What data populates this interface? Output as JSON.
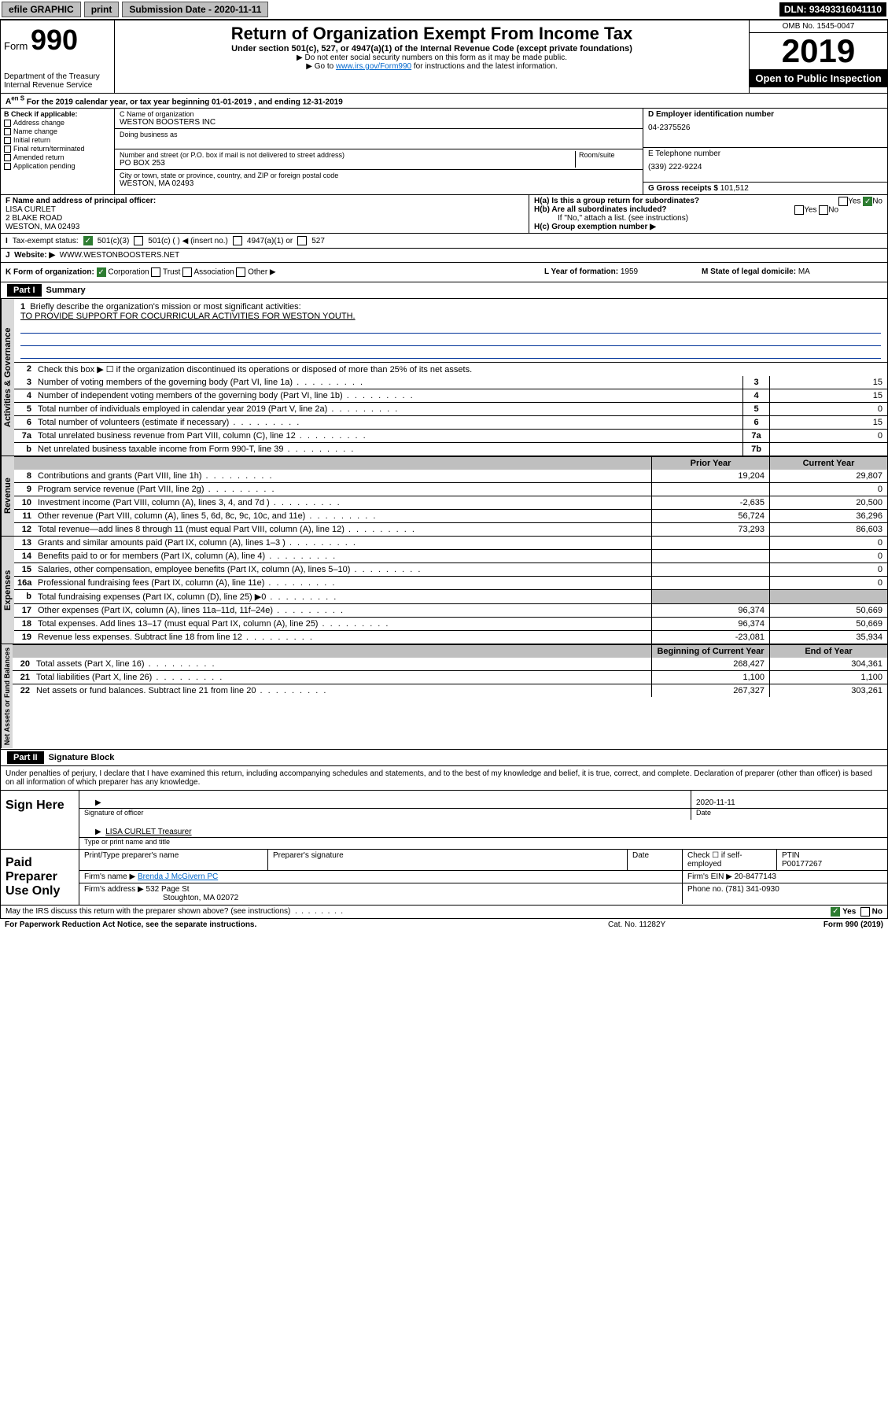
{
  "top": {
    "efile": "efile GRAPHIC",
    "print": "print",
    "subDate": "Submission Date - 2020-11-11",
    "dln": "DLN: 93493316041110"
  },
  "header": {
    "form": "Form",
    "num": "990",
    "dept": "Department of the Treasury\nInternal Revenue Service",
    "title": "Return of Organization Exempt From Income Tax",
    "sub": "Under section 501(c), 527, or 4947(a)(1) of the Internal Revenue Code (except private foundations)",
    "note1": "▶ Do not enter social security numbers on this form as it may be made public.",
    "note2_pre": "▶ Go to ",
    "note2_link": "www.irs.gov/Form990",
    "note2_post": " for instructions and the latest information.",
    "omb": "OMB No. 1545-0047",
    "year": "2019",
    "open": "Open to Public Inspection"
  },
  "A": "For the 2019 calendar year, or tax year beginning 01-01-2019   , and ending 12-31-2019",
  "B": {
    "label": "B Check if applicable:",
    "items": [
      "Address change",
      "Name change",
      "Initial return",
      "Final return/terminated",
      "Amended return",
      "Application pending"
    ]
  },
  "C": {
    "nameLbl": "C Name of organization",
    "name": "WESTON BOOSTERS INC",
    "dbaLbl": "Doing business as",
    "addrLbl": "Number and street (or P.O. box if mail is not delivered to street address)",
    "roomLbl": "Room/suite",
    "addr": "PO BOX 253",
    "cityLbl": "City or town, state or province, country, and ZIP or foreign postal code",
    "city": "WESTON, MA  02493"
  },
  "D": {
    "lbl": "D Employer identification number",
    "val": "04-2375526"
  },
  "E": {
    "lbl": "E Telephone number",
    "val": "(339) 222-9224"
  },
  "G": {
    "lbl": "G Gross receipts $",
    "val": "101,512"
  },
  "F": {
    "lbl": "F  Name and address of principal officer:",
    "name": "LISA CURLET",
    "addr1": "2 BLAKE ROAD",
    "addr2": "WESTON, MA  02493"
  },
  "H": {
    "a": "H(a)  Is this a group return for subordinates?",
    "b": "H(b)  Are all subordinates included?",
    "bnote": "If \"No,\" attach a list. (see instructions)",
    "c": "H(c)  Group exemption number ▶",
    "yes": "Yes",
    "no": "No"
  },
  "I": {
    "lbl": "Tax-exempt status:",
    "opts": [
      "501(c)(3)",
      "501(c) (  ) ◀ (insert no.)",
      "4947(a)(1) or",
      "527"
    ]
  },
  "J": {
    "lbl": "Website: ▶",
    "val": "WWW.WESTONBOOSTERS.NET"
  },
  "K": {
    "lbl": "K Form of organization:",
    "opts": [
      "Corporation",
      "Trust",
      "Association",
      "Other ▶"
    ]
  },
  "L": {
    "lbl": "L Year of formation:",
    "val": "1959"
  },
  "M": {
    "lbl": "M State of legal domicile:",
    "val": "MA"
  },
  "part1": {
    "hdr": "Part I",
    "title": "Summary",
    "l1": "Briefly describe the organization's mission or most significant activities:",
    "l1val": "TO PROVIDE SUPPORT FOR COCURRICULAR ACTIVITIES FOR WESTON YOUTH.",
    "l2": "Check this box ▶ ☐  if the organization discontinued its operations or disposed of more than 25% of its net assets.",
    "rows_ag": [
      {
        "n": "3",
        "t": "Number of voting members of the governing body (Part VI, line 1a)",
        "b": "3",
        "v": "15"
      },
      {
        "n": "4",
        "t": "Number of independent voting members of the governing body (Part VI, line 1b)",
        "b": "4",
        "v": "15"
      },
      {
        "n": "5",
        "t": "Total number of individuals employed in calendar year 2019 (Part V, line 2a)",
        "b": "5",
        "v": "0"
      },
      {
        "n": "6",
        "t": "Total number of volunteers (estimate if necessary)",
        "b": "6",
        "v": "15"
      },
      {
        "n": "7a",
        "t": "Total unrelated business revenue from Part VIII, column (C), line 12",
        "b": "7a",
        "v": "0"
      },
      {
        "n": "b",
        "t": "Net unrelated business taxable income from Form 990-T, line 39",
        "b": "7b",
        "v": ""
      }
    ],
    "prior": "Prior Year",
    "current": "Current Year",
    "rev": [
      {
        "n": "8",
        "t": "Contributions and grants (Part VIII, line 1h)",
        "p": "19,204",
        "c": "29,807"
      },
      {
        "n": "9",
        "t": "Program service revenue (Part VIII, line 2g)",
        "p": "",
        "c": "0"
      },
      {
        "n": "10",
        "t": "Investment income (Part VIII, column (A), lines 3, 4, and 7d )",
        "p": "-2,635",
        "c": "20,500"
      },
      {
        "n": "11",
        "t": "Other revenue (Part VIII, column (A), lines 5, 6d, 8c, 9c, 10c, and 11e)",
        "p": "56,724",
        "c": "36,296"
      },
      {
        "n": "12",
        "t": "Total revenue—add lines 8 through 11 (must equal Part VIII, column (A), line 12)",
        "p": "73,293",
        "c": "86,603"
      }
    ],
    "exp": [
      {
        "n": "13",
        "t": "Grants and similar amounts paid (Part IX, column (A), lines 1–3 )",
        "p": "",
        "c": "0"
      },
      {
        "n": "14",
        "t": "Benefits paid to or for members (Part IX, column (A), line 4)",
        "p": "",
        "c": "0"
      },
      {
        "n": "15",
        "t": "Salaries, other compensation, employee benefits (Part IX, column (A), lines 5–10)",
        "p": "",
        "c": "0"
      },
      {
        "n": "16a",
        "t": "Professional fundraising fees (Part IX, column (A), line 11e)",
        "p": "",
        "c": "0"
      },
      {
        "n": "b",
        "t": "Total fundraising expenses (Part IX, column (D), line 25) ▶0",
        "p": "SHADE",
        "c": "SHADE"
      },
      {
        "n": "17",
        "t": "Other expenses (Part IX, column (A), lines 11a–11d, 11f–24e)",
        "p": "96,374",
        "c": "50,669"
      },
      {
        "n": "18",
        "t": "Total expenses. Add lines 13–17 (must equal Part IX, column (A), line 25)",
        "p": "96,374",
        "c": "50,669"
      },
      {
        "n": "19",
        "t": "Revenue less expenses. Subtract line 18 from line 12",
        "p": "-23,081",
        "c": "35,934"
      }
    ],
    "begin": "Beginning of Current Year",
    "end": "End of Year",
    "nab": [
      {
        "n": "20",
        "t": "Total assets (Part X, line 16)",
        "p": "268,427",
        "c": "304,361"
      },
      {
        "n": "21",
        "t": "Total liabilities (Part X, line 26)",
        "p": "1,100",
        "c": "1,100"
      },
      {
        "n": "22",
        "t": "Net assets or fund balances. Subtract line 21 from line 20",
        "p": "267,327",
        "c": "303,261"
      }
    ],
    "tabs": {
      "ag": "Activities & Governance",
      "rev": "Revenue",
      "exp": "Expenses",
      "nab": "Net Assets or Fund Balances"
    }
  },
  "part2": {
    "hdr": "Part II",
    "title": "Signature Block",
    "decl": "Under penalties of perjury, I declare that I have examined this return, including accompanying schedules and statements, and to the best of my knowledge and belief, it is true, correct, and complete. Declaration of preparer (other than officer) is based on all information of which preparer has any knowledge.",
    "signHere": "Sign Here",
    "sigOff": "Signature of officer",
    "date": "Date",
    "dateVal": "2020-11-11",
    "name": "LISA CURLET  Treasurer",
    "nameLbl": "Type or print name and title",
    "paid": "Paid Preparer Use Only",
    "col1": "Print/Type preparer's name",
    "col2": "Preparer's signature",
    "col3": "Date",
    "col4a": "Check ☐ if self-employed",
    "col4b": "PTIN",
    "ptin": "P00177267",
    "firmName": "Firm's name   ▶",
    "firm": "Brenda J McGivern PC",
    "firmEin": "Firm's EIN ▶",
    "ein": "20-8477143",
    "firmAddr": "Firm's address ▶",
    "addr": "532 Page St",
    "addr2": "Stoughton, MA  02072",
    "phone": "Phone no.",
    "phoneVal": "(781) 341-0930",
    "discuss": "May the IRS discuss this return with the preparer shown above? (see instructions)",
    "yes": "Yes",
    "no": "No"
  },
  "footer": {
    "paperwork": "For Paperwork Reduction Act Notice, see the separate instructions.",
    "cat": "Cat. No. 11282Y",
    "form": "Form 990 (2019)"
  }
}
